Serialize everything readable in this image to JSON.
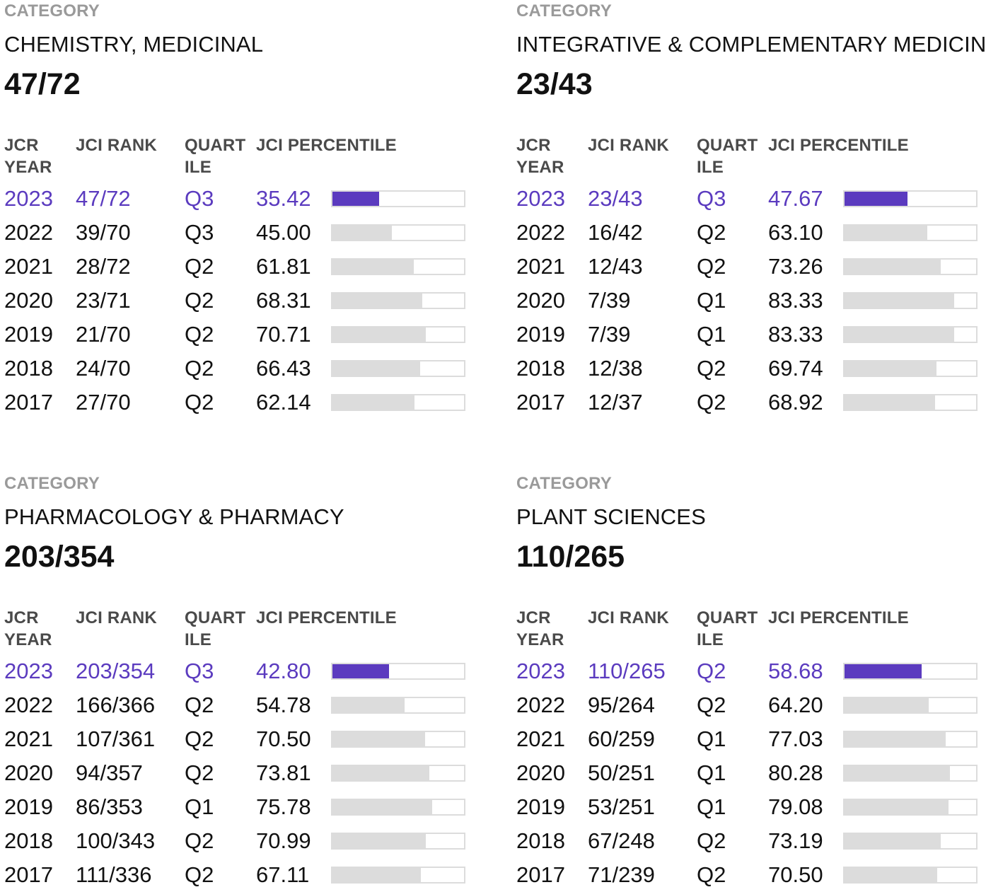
{
  "labels": {
    "category": "CATEGORY",
    "jcr_year_line1": "JCR",
    "jcr_year_line2": "YEAR",
    "jci_rank": "JCI RANK",
    "quartile_line1": "QUART",
    "quartile_line2": "ILE",
    "jci_percentile": "JCI PERCENTILE"
  },
  "colors": {
    "accent": "#5b3bbf",
    "bar_track": "#dcdcdc",
    "label_gray": "#9a9a9a"
  },
  "categories": [
    {
      "name": "CHEMISTRY, MEDICINAL",
      "rank": "47/72",
      "rows": [
        {
          "year": "2023",
          "rank": "47/72",
          "quartile": "Q3",
          "percentile": "35.42",
          "current": true
        },
        {
          "year": "2022",
          "rank": "39/70",
          "quartile": "Q3",
          "percentile": "45.00"
        },
        {
          "year": "2021",
          "rank": "28/72",
          "quartile": "Q2",
          "percentile": "61.81"
        },
        {
          "year": "2020",
          "rank": "23/71",
          "quartile": "Q2",
          "percentile": "68.31"
        },
        {
          "year": "2019",
          "rank": "21/70",
          "quartile": "Q2",
          "percentile": "70.71"
        },
        {
          "year": "2018",
          "rank": "24/70",
          "quartile": "Q2",
          "percentile": "66.43"
        },
        {
          "year": "2017",
          "rank": "27/70",
          "quartile": "Q2",
          "percentile": "62.14"
        }
      ]
    },
    {
      "name": "INTEGRATIVE & COMPLEMENTARY MEDICINE",
      "rank": "23/43",
      "rows": [
        {
          "year": "2023",
          "rank": "23/43",
          "quartile": "Q3",
          "percentile": "47.67",
          "current": true
        },
        {
          "year": "2022",
          "rank": "16/42",
          "quartile": "Q2",
          "percentile": "63.10"
        },
        {
          "year": "2021",
          "rank": "12/43",
          "quartile": "Q2",
          "percentile": "73.26"
        },
        {
          "year": "2020",
          "rank": "7/39",
          "quartile": "Q1",
          "percentile": "83.33"
        },
        {
          "year": "2019",
          "rank": "7/39",
          "quartile": "Q1",
          "percentile": "83.33"
        },
        {
          "year": "2018",
          "rank": "12/38",
          "quartile": "Q2",
          "percentile": "69.74"
        },
        {
          "year": "2017",
          "rank": "12/37",
          "quartile": "Q2",
          "percentile": "68.92"
        }
      ]
    },
    {
      "name": "PHARMACOLOGY & PHARMACY",
      "rank": "203/354",
      "rows": [
        {
          "year": "2023",
          "rank": "203/354",
          "quartile": "Q3",
          "percentile": "42.80",
          "current": true
        },
        {
          "year": "2022",
          "rank": "166/366",
          "quartile": "Q2",
          "percentile": "54.78"
        },
        {
          "year": "2021",
          "rank": "107/361",
          "quartile": "Q2",
          "percentile": "70.50"
        },
        {
          "year": "2020",
          "rank": "94/357",
          "quartile": "Q2",
          "percentile": "73.81"
        },
        {
          "year": "2019",
          "rank": "86/353",
          "quartile": "Q1",
          "percentile": "75.78"
        },
        {
          "year": "2018",
          "rank": "100/343",
          "quartile": "Q2",
          "percentile": "70.99"
        },
        {
          "year": "2017",
          "rank": "111/336",
          "quartile": "Q2",
          "percentile": "67.11"
        }
      ]
    },
    {
      "name": "PLANT SCIENCES",
      "rank": "110/265",
      "rows": [
        {
          "year": "2023",
          "rank": "110/265",
          "quartile": "Q2",
          "percentile": "58.68",
          "current": true
        },
        {
          "year": "2022",
          "rank": "95/264",
          "quartile": "Q2",
          "percentile": "64.20"
        },
        {
          "year": "2021",
          "rank": "60/259",
          "quartile": "Q1",
          "percentile": "77.03"
        },
        {
          "year": "2020",
          "rank": "50/251",
          "quartile": "Q1",
          "percentile": "80.28"
        },
        {
          "year": "2019",
          "rank": "53/251",
          "quartile": "Q1",
          "percentile": "79.08"
        },
        {
          "year": "2018",
          "rank": "67/248",
          "quartile": "Q2",
          "percentile": "73.19"
        },
        {
          "year": "2017",
          "rank": "71/239",
          "quartile": "Q2",
          "percentile": "70.50"
        }
      ]
    }
  ]
}
